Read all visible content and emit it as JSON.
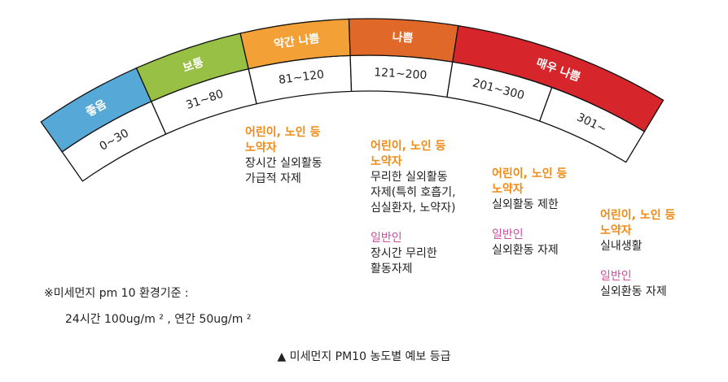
{
  "levels": [
    {
      "name": "좋음",
      "range": "0~30",
      "color": "#56a9d7"
    },
    {
      "name": "보통",
      "range": "31~80",
      "color": "#97c045"
    },
    {
      "name": "약간 나쁨",
      "range": "81~120",
      "color": "#f3a036"
    },
    {
      "name": "나쁨",
      "range": "121~200",
      "color": "#e0692a"
    },
    {
      "name": "매우 나쁨",
      "range": "201~300",
      "color": "#d6262b"
    }
  ],
  "extra_range": "301~",
  "advice": [
    {
      "header": "어린이, 노인 등\n노약자",
      "body": "장시간 실외활동\n가급적 자제"
    },
    {
      "header": "어린이, 노인 등\n노약자",
      "body": "무리한 실외활동\n자제(특히 호흡기,\n심실환자, 노약자)",
      "general_label": "일반인",
      "general_body": "장시간 무리한\n활동자제"
    },
    {
      "header": "어린이, 노인 등\n노약자",
      "body": "실외활동 제한",
      "general_label": "일반인",
      "general_body": "실외환동 자제"
    },
    {
      "header": "어린이, 노인 등\n노약자",
      "body": "실내생활",
      "general_label": "일반인",
      "general_body": "실외환동 자제"
    }
  ],
  "note": {
    "line1": "※미세먼지 pm 10 환경기준 :",
    "line2": "24시간 100ug/m ² , 연간 50ug/m ²"
  },
  "caption": "▲ 미세먼지 PM10 농도별 예보 등급"
}
